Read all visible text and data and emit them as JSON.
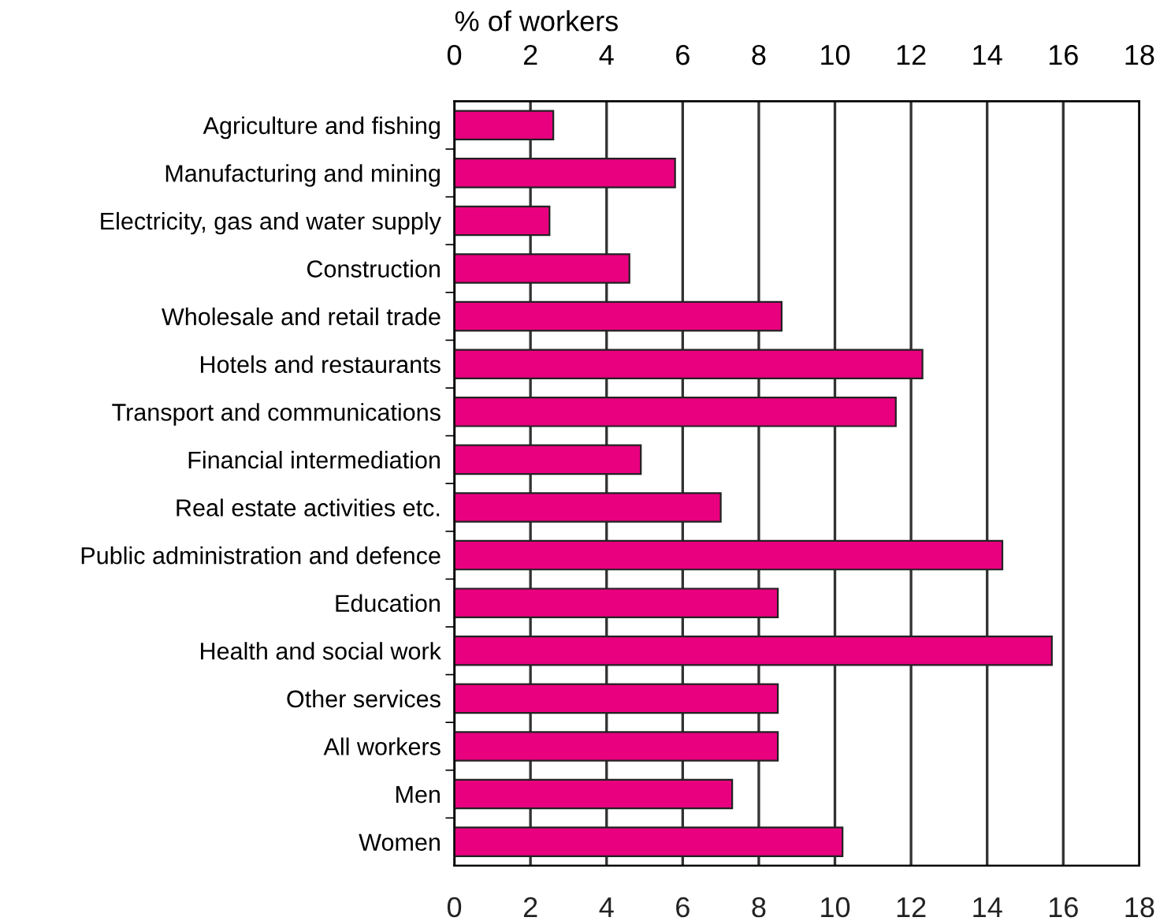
{
  "chart_data": {
    "type": "bar",
    "orientation": "horizontal",
    "x2label": "% of workers",
    "categories": [
      "Agriculture and fishing",
      "Manufacturing and mining",
      "Electricity, gas and water supply",
      "Construction",
      "Wholesale and retail trade",
      "Hotels and restaurants",
      "Transport and communications",
      "Financial intermediation",
      "Real estate activities etc.",
      "Public administration and defence",
      "Education",
      "Health and social work",
      "Other services",
      "All workers",
      "Men",
      "Women"
    ],
    "values": [
      2.6,
      5.8,
      2.5,
      4.6,
      8.6,
      12.3,
      11.6,
      4.9,
      7.0,
      14.4,
      8.5,
      15.7,
      8.5,
      8.5,
      7.3,
      10.2
    ],
    "color": "#e8007f",
    "xlim": [
      0,
      18
    ],
    "xticks": [
      0,
      2,
      4,
      6,
      8,
      10,
      12,
      14,
      16,
      18
    ],
    "x2lim": [
      0,
      18
    ],
    "x2ticks": [
      0,
      2,
      4,
      6,
      8,
      10,
      12,
      14,
      16,
      18
    ],
    "grid": "x",
    "legend": false
  }
}
